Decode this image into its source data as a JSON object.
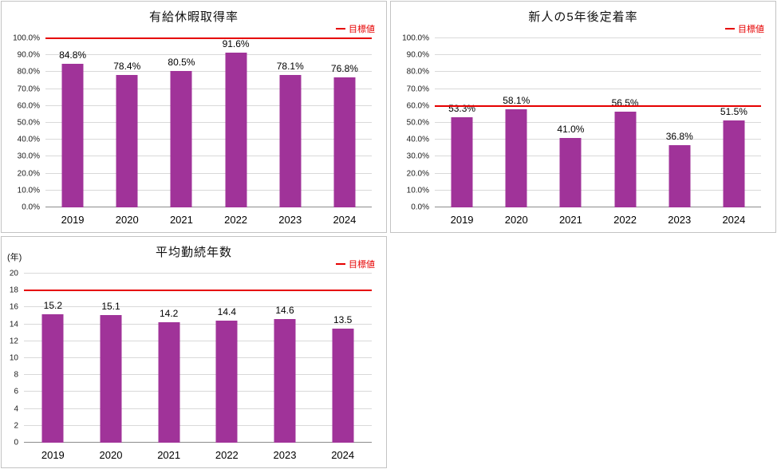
{
  "page": {
    "background": "#FFFFFF",
    "panel_border_color": "#C3C3C3"
  },
  "chart_data": [
    {
      "type": "bar",
      "title": "有給休暇取得率",
      "categories": [
        "2019",
        "2020",
        "2021",
        "2022",
        "2023",
        "2024"
      ],
      "values": [
        84.8,
        78.4,
        80.5,
        91.6,
        78.1,
        76.8
      ],
      "value_suffix": "%",
      "value_decimals": 1,
      "ylim": [
        0,
        100
      ],
      "ystep": 10,
      "tick_suffix": "%",
      "tick_decimals": 1,
      "target_value": 100,
      "legend_label": "目標値",
      "unit_label": "",
      "bar_color": "#A03399",
      "target_color": "#E60000",
      "grid": true,
      "legend_position": "top-right"
    },
    {
      "type": "bar",
      "title": "新人の5年後定着率",
      "categories": [
        "2019",
        "2020",
        "2021",
        "2022",
        "2023",
        "2024"
      ],
      "values": [
        53.3,
        58.1,
        41.0,
        56.5,
        36.8,
        51.5
      ],
      "value_suffix": "%",
      "value_decimals": 1,
      "ylim": [
        0,
        100
      ],
      "ystep": 10,
      "tick_suffix": "%",
      "tick_decimals": 1,
      "target_value": 60,
      "legend_label": "目標値",
      "unit_label": "",
      "bar_color": "#A03399",
      "target_color": "#E60000",
      "grid": true,
      "legend_position": "top-right"
    },
    {
      "type": "bar",
      "title": "平均勤続年数",
      "categories": [
        "2019",
        "2020",
        "2021",
        "2022",
        "2023",
        "2024"
      ],
      "values": [
        15.2,
        15.1,
        14.2,
        14.4,
        14.6,
        13.5
      ],
      "value_suffix": "",
      "value_decimals": 1,
      "ylim": [
        0,
        20
      ],
      "ystep": 2,
      "tick_suffix": "",
      "tick_decimals": 0,
      "target_value": 18,
      "legend_label": "目標値",
      "unit_label": "(年)",
      "bar_color": "#A03399",
      "target_color": "#E60000",
      "grid": true,
      "legend_position": "top-right"
    }
  ]
}
